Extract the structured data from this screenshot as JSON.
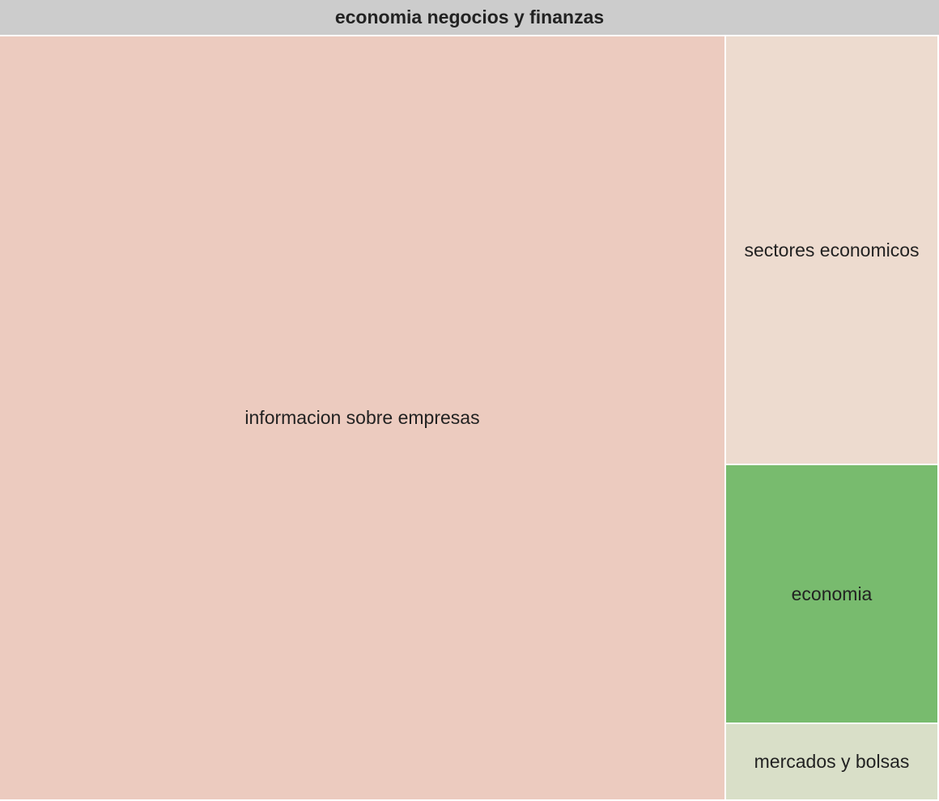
{
  "chart_data": {
    "type": "treemap",
    "root": {
      "name": "economia negocios y finanzas",
      "color": "#cccccc"
    },
    "children": [
      {
        "name": "informacion sobre empresas",
        "value": 845,
        "color": "#eccbbf"
      },
      {
        "name": "sectores economicos",
        "value": 141,
        "color": "#eddbcf"
      },
      {
        "name": "economia",
        "value": 85,
        "color": "#78bb6e"
      },
      {
        "name": "mercados y bolsas",
        "value": 25,
        "color": "#d9dfc8"
      }
    ]
  }
}
